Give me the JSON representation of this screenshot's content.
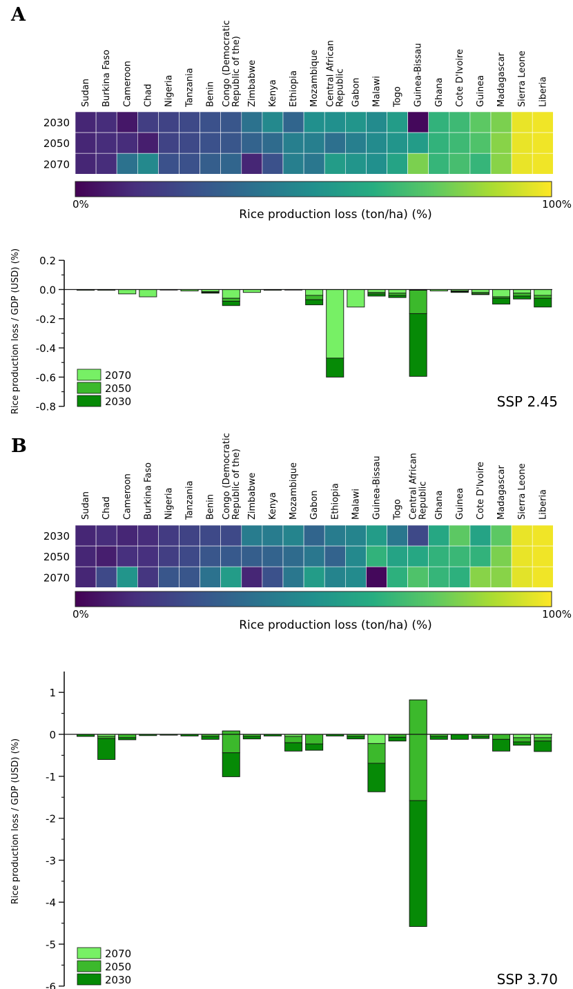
{
  "figure": {
    "colormap": [
      "#440154",
      "#472f7d",
      "#3b518b",
      "#2c718e",
      "#21908d",
      "#27ad81",
      "#5cc863",
      "#aadc32",
      "#fde725"
    ]
  },
  "chart_data": [
    {
      "type": "heatmap",
      "panel": "A",
      "countries": [
        "Sudan",
        "Burkina Faso",
        "Cameroon",
        "Chad",
        "Nigeria",
        "Tanzania",
        "Benin",
        "Congo (Democratic Republic of the)",
        "Zimbabwe",
        "Kenya",
        "Ethiopia",
        "Mozambique",
        "Central African Republic",
        "Gabon",
        "Malawi",
        "Togo",
        "Guinea-Bissau",
        "Ghana",
        "Cote D'Ivoire",
        "Guinea",
        "Madagascar",
        "Sierra Leone",
        "Liberia"
      ],
      "years": [
        "2030",
        "2050",
        "2070"
      ],
      "values": [
        [
          0.1,
          0.12,
          0.06,
          0.18,
          0.2,
          0.22,
          0.25,
          0.27,
          0.38,
          0.47,
          0.33,
          0.5,
          0.5,
          0.52,
          0.48,
          0.55,
          0.02,
          0.65,
          0.68,
          0.75,
          0.8,
          0.97,
          0.98
        ],
        [
          0.1,
          0.12,
          0.12,
          0.08,
          0.2,
          0.22,
          0.25,
          0.27,
          0.32,
          0.35,
          0.43,
          0.43,
          0.37,
          0.43,
          0.48,
          0.52,
          0.55,
          0.65,
          0.68,
          0.72,
          0.82,
          0.97,
          0.98
        ],
        [
          0.1,
          0.12,
          0.38,
          0.47,
          0.25,
          0.25,
          0.3,
          0.33,
          0.1,
          0.25,
          0.43,
          0.4,
          0.55,
          0.52,
          0.5,
          0.58,
          0.8,
          0.66,
          0.7,
          0.66,
          0.82,
          0.97,
          0.98
        ]
      ],
      "colorbar": {
        "label": "Rice production loss (ton/ha) (%)",
        "min_label": "0%",
        "max_label": "100%"
      }
    },
    {
      "type": "bar",
      "panel": "A",
      "ylabel": "Rice production loss / GDP (USD) (%)",
      "ylim": [
        -0.8,
        0.2
      ],
      "yticks": [
        0.2,
        0.0,
        -0.2,
        -0.4,
        -0.6,
        -0.8
      ],
      "ytick_labels": [
        "0.2",
        "0.0",
        "-0.2",
        "-0.4",
        "-0.6",
        "-0.8"
      ],
      "legend_position": "bottom-left",
      "scenario": "SSP 2.45",
      "series": [
        {
          "name": "2070",
          "color": "#77f065",
          "values": [
            -0.005,
            -0.005,
            -0.03,
            -0.05,
            -0.002,
            -0.01,
            -0.015,
            -0.06,
            -0.02,
            -0.005,
            -0.002,
            -0.04,
            -0.47,
            -0.12,
            -0.02,
            -0.025,
            -0.005,
            -0.01,
            -0.01,
            -0.02,
            -0.05,
            -0.025,
            -0.04
          ]
        },
        {
          "name": "2050",
          "color": "#3cb92c",
          "values": [
            0,
            0,
            0,
            0,
            0,
            0,
            -0.005,
            -0.02,
            0,
            0,
            0,
            -0.03,
            0,
            0,
            -0.01,
            -0.015,
            -0.16,
            0,
            -0.005,
            -0.01,
            -0.01,
            -0.02,
            -0.02
          ]
        },
        {
          "name": "2030",
          "color": "#068a06",
          "values": [
            0,
            0,
            0,
            0,
            0,
            0,
            -0.005,
            -0.03,
            0,
            0,
            0,
            -0.035,
            -0.13,
            0,
            -0.015,
            -0.015,
            -0.43,
            0,
            -0.005,
            -0.005,
            -0.04,
            -0.02,
            -0.06
          ]
        }
      ],
      "bar_order": [
        "Sudan",
        "Burkina Faso",
        "Cameroon",
        "Chad",
        "Nigeria",
        "Tanzania",
        "Benin",
        "Congo (Democratic Republic of the)",
        "Zimbabwe",
        "Kenya",
        "Ethiopia",
        "Mozambique",
        "Central African Republic",
        "Gabon",
        "Malawi",
        "Togo",
        "Guinea-Bissau",
        "Ghana",
        "Cote D'Ivoire",
        "Guinea",
        "Madagascar",
        "Sierra Leone",
        "Liberia"
      ]
    },
    {
      "type": "heatmap",
      "panel": "B",
      "countries": [
        "Sudan",
        "Chad",
        "Cameroon",
        "Burkina Faso",
        "Nigeria",
        "Tanzania",
        "Benin",
        "Congo (Democratic Republic of the)",
        "Zimbabwe",
        "Kenya",
        "Mozambique",
        "Gabon",
        "Ethiopia",
        "Malawi",
        "Guinea-Bissau",
        "Togo",
        "Central African Republic",
        "Ghana",
        "Guinea",
        "Cote D'Ivoire",
        "Madagascar",
        "Sierra Leone",
        "Liberia"
      ],
      "years": [
        "2030",
        "2050",
        "2070"
      ],
      "values": [
        [
          0.1,
          0.12,
          0.1,
          0.12,
          0.17,
          0.2,
          0.22,
          0.22,
          0.42,
          0.42,
          0.45,
          0.33,
          0.42,
          0.45,
          0.55,
          0.4,
          0.22,
          0.6,
          0.75,
          0.58,
          0.75,
          0.97,
          0.98
        ],
        [
          0.1,
          0.08,
          0.13,
          0.13,
          0.18,
          0.22,
          0.27,
          0.28,
          0.3,
          0.32,
          0.35,
          0.4,
          0.32,
          0.47,
          0.65,
          0.58,
          0.6,
          0.65,
          0.67,
          0.65,
          0.8,
          0.97,
          0.98
        ],
        [
          0.1,
          0.22,
          0.52,
          0.15,
          0.27,
          0.27,
          0.38,
          0.55,
          0.1,
          0.25,
          0.4,
          0.55,
          0.45,
          0.48,
          0.02,
          0.64,
          0.72,
          0.66,
          0.64,
          0.82,
          0.82,
          0.96,
          0.98
        ]
      ],
      "colorbar": {
        "label": "Rice production loss (ton/ha) (%)",
        "min_label": "0%",
        "max_label": "100%"
      }
    },
    {
      "type": "bar",
      "panel": "B",
      "ylabel": "Rice production loss / GDP (USD) (%)",
      "ylim": [
        -6,
        1.5
      ],
      "yticks": [
        1,
        0,
        -1,
        -2,
        -3,
        -4,
        -5,
        -6
      ],
      "ytick_labels": [
        "1",
        "0",
        "-1",
        "-2",
        "-3",
        "-4",
        "-5",
        "-6"
      ],
      "legend_position": "bottom-left",
      "scenario": "SSP 3.70",
      "series": [
        {
          "name": "2070",
          "color": "#77f065",
          "values": [
            0,
            -0.05,
            0,
            0,
            0,
            0,
            0,
            0.08,
            0,
            0,
            -0.05,
            0,
            0,
            0,
            -0.22,
            0,
            0.82,
            0,
            0,
            0,
            0,
            -0.08,
            -0.08
          ]
        },
        {
          "name": "2050",
          "color": "#3cb92c",
          "values": [
            0,
            -0.05,
            -0.08,
            0,
            0,
            0,
            -0.05,
            -0.52,
            -0.05,
            0,
            -0.15,
            -0.23,
            0,
            -0.05,
            -0.47,
            -0.07,
            -2.4,
            -0.05,
            0,
            -0.05,
            -0.12,
            -0.1,
            -0.08
          ]
        },
        {
          "name": "2030",
          "color": "#068a06",
          "values": [
            -0.05,
            -0.5,
            -0.05,
            -0.03,
            -0.02,
            -0.04,
            -0.07,
            -0.57,
            -0.06,
            -0.04,
            -0.2,
            -0.15,
            -0.04,
            -0.06,
            -0.68,
            -0.09,
            -3.0,
            -0.07,
            -0.12,
            -0.05,
            -0.28,
            -0.08,
            -0.25
          ]
        }
      ],
      "bar_order": [
        "Sudan",
        "Chad",
        "Cameroon",
        "Burkina Faso",
        "Nigeria",
        "Tanzania",
        "Benin",
        "Congo (Democratic Republic of the)",
        "Zimbabwe",
        "Kenya",
        "Mozambique",
        "Gabon",
        "Ethiopia",
        "Malawi",
        "Guinea-Bissau",
        "Togo",
        "Central African Republic",
        "Ghana",
        "Guinea",
        "Cote D'Ivoire",
        "Madagascar",
        "Sierra Leone",
        "Liberia"
      ]
    }
  ],
  "panels": {
    "a": {
      "letter": "A"
    },
    "b": {
      "letter": "B"
    }
  },
  "legend": {
    "items": [
      "2070",
      "2050",
      "2030"
    ]
  }
}
